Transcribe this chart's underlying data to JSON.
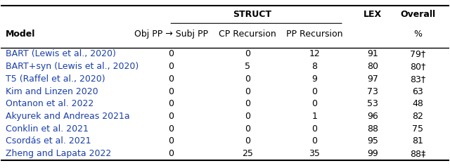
{
  "col_headers_row1": [
    "",
    "STRUCT",
    "",
    "LEX",
    "Overall"
  ],
  "col_headers_row2": [
    "Model",
    "Obj PP → Subj PP",
    "CP Recursion",
    "PP Recursion",
    "",
    "%"
  ],
  "rows": [
    [
      "BART (Lewis et al., 2020)",
      "0",
      "0",
      "12",
      "91",
      "79†"
    ],
    [
      "BART+syn (Lewis et al., 2020)",
      "0",
      "5",
      "8",
      "80",
      "80†"
    ],
    [
      "T5 (Raffel et al., 2020)",
      "0",
      "0",
      "9",
      "97",
      "83†"
    ],
    [
      "Kim and Linzen 2020",
      "0",
      "0",
      "0",
      "73",
      "63"
    ],
    [
      "Ontanon et al. 2022",
      "0",
      "0",
      "0",
      "53",
      "48"
    ],
    [
      "Akyurek and Andreas 2021a",
      "0",
      "0",
      "1",
      "96",
      "82"
    ],
    [
      "Conklin et al. 2021",
      "0",
      "0",
      "0",
      "88",
      "75"
    ],
    [
      "Csordás et al. 2021",
      "0",
      "0",
      "0",
      "95",
      "81"
    ],
    [
      "Zheng and Lapata 2022",
      "0",
      "25",
      "35",
      "99",
      "88‡"
    ]
  ],
  "model_col_color": "#1a3faa",
  "data_col_color": "#000000",
  "header_color": "#000000",
  "background_color": "#ffffff",
  "font_size": 9,
  "header_font_size": 9
}
